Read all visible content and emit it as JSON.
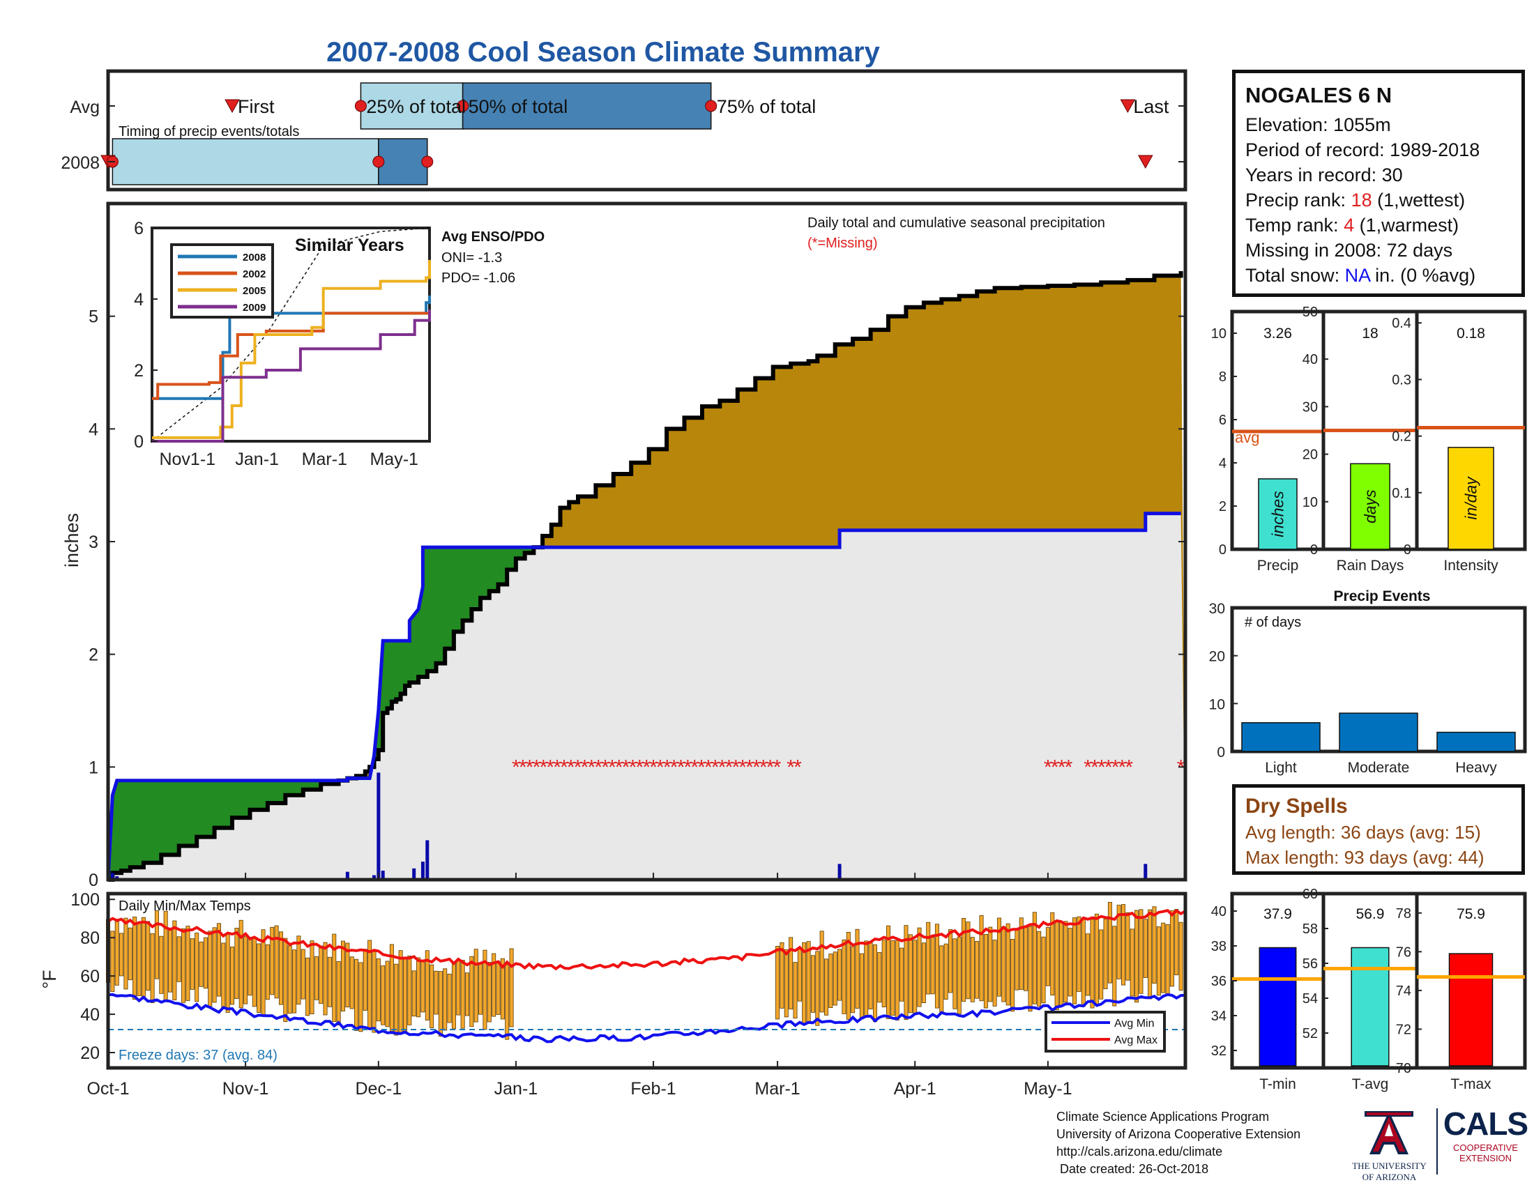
{
  "title": "2007-2008 Cool Season Climate Summary",
  "colors": {
    "title": "#1f57a3",
    "green": "#228b22",
    "gold": "#b8860b",
    "obs_fill": "#e8e8e8",
    "avg_line": "#1010e0",
    "temp_bar": "#f2a72c",
    "red": "#e02020",
    "blue": "#1010ee",
    "avg_bar_line": "#d95319"
  },
  "timing": {
    "caption": "Timing of precip events/totals",
    "rows": [
      "Avg",
      "2008"
    ],
    "avg_labels": [
      "First",
      "25% of total",
      "50% of total",
      "75% of total",
      "Last"
    ],
    "avg_first_day": 28,
    "avg_q25_day": 57,
    "avg_q50_day": 80,
    "avg_q75_day": 136,
    "avg_last_day": 230,
    "y2008_first_day": 1,
    "y2008_q25_day": 61,
    "y2008_q50_day": 61,
    "y2008_q75_day": 72,
    "y2008_last_day": 234
  },
  "station": {
    "name": "NOGALES 6 N",
    "elevation_label": "Elevation: 1055m",
    "period_label": "Period of record: 1989-2018",
    "years_label": "Years in record: 30",
    "precip_rank_prefix": "Precip rank: ",
    "precip_rank_value": "18",
    "precip_rank_suffix": " (1,wettest)",
    "temp_rank_prefix": "Temp rank: ",
    "temp_rank_value": "4",
    "temp_rank_suffix": " (1,warmest)",
    "missing_label": "Missing in 2008: 72 days",
    "snow_prefix": "Total snow: ",
    "snow_value": "NA",
    "snow_suffix": " in. (0 %avg)"
  },
  "main_chart": {
    "ylabel": "inches",
    "ylim": [
      0,
      6
    ],
    "yticks": [
      0,
      1,
      2,
      3,
      4,
      5
    ],
    "legend_line1": "Daily total and cumulative seasonal precipitation",
    "legend_line2": "(*=Missing)",
    "enso_title": "Avg ENSO/PDO",
    "oni_label": "ONI= -1.3",
    "pdo_label": "PDO= -1.06",
    "x_days": [
      0,
      31,
      61,
      92,
      123,
      151,
      182,
      212
    ],
    "x_labels": [
      "Oct-1",
      "Nov-1",
      "Dec-1",
      "Jan-1",
      "Feb-1",
      "Mar-1",
      "Apr-1",
      "May-1"
    ],
    "num_days": 243,
    "observed": [
      [
        0,
        0.0
      ],
      [
        1,
        0.03
      ],
      [
        1,
        0.06
      ],
      [
        2,
        0.06
      ],
      [
        3,
        0.08
      ],
      [
        5,
        0.11
      ],
      [
        8,
        0.15
      ],
      [
        12,
        0.22
      ],
      [
        16,
        0.3
      ],
      [
        20,
        0.38
      ],
      [
        24,
        0.46
      ],
      [
        28,
        0.55
      ],
      [
        32,
        0.62
      ],
      [
        36,
        0.68
      ],
      [
        40,
        0.75
      ],
      [
        44,
        0.8
      ],
      [
        48,
        0.85
      ],
      [
        52,
        0.88
      ],
      [
        54,
        0.9
      ],
      [
        56,
        0.92
      ],
      [
        58,
        0.96
      ],
      [
        59,
        1.0
      ],
      [
        60,
        1.07
      ],
      [
        61,
        1.15
      ],
      [
        62,
        1.2
      ],
      [
        62,
        1.48
      ],
      [
        63,
        1.52
      ],
      [
        64,
        1.58
      ],
      [
        65,
        1.6
      ],
      [
        66,
        1.65
      ],
      [
        67,
        1.72
      ],
      [
        68,
        1.75
      ],
      [
        70,
        1.8
      ],
      [
        72,
        1.85
      ],
      [
        74,
        1.92
      ],
      [
        76,
        2.05
      ],
      [
        78,
        2.2
      ],
      [
        80,
        2.3
      ],
      [
        82,
        2.4
      ],
      [
        84,
        2.5
      ],
      [
        86,
        2.56
      ],
      [
        88,
        2.62
      ],
      [
        90,
        2.75
      ],
      [
        92,
        2.85
      ],
      [
        94,
        2.9
      ],
      [
        96,
        2.95
      ],
      [
        98,
        3.05
      ],
      [
        100,
        3.15
      ],
      [
        102,
        3.3
      ],
      [
        104,
        3.35
      ],
      [
        106,
        3.4
      ],
      [
        110,
        3.5
      ],
      [
        114,
        3.6
      ],
      [
        118,
        3.7
      ],
      [
        122,
        3.82
      ],
      [
        126,
        4.0
      ],
      [
        130,
        4.1
      ],
      [
        134,
        4.2
      ],
      [
        138,
        4.25
      ],
      [
        142,
        4.35
      ],
      [
        146,
        4.45
      ],
      [
        150,
        4.55
      ],
      [
        154,
        4.58
      ],
      [
        158,
        4.6
      ],
      [
        160,
        4.65
      ],
      [
        164,
        4.75
      ],
      [
        168,
        4.8
      ],
      [
        172,
        4.88
      ],
      [
        176,
        5.0
      ],
      [
        180,
        5.08
      ],
      [
        184,
        5.12
      ],
      [
        188,
        5.15
      ],
      [
        192,
        5.18
      ],
      [
        196,
        5.22
      ],
      [
        200,
        5.25
      ],
      [
        206,
        5.26
      ],
      [
        212,
        5.27
      ],
      [
        218,
        5.28
      ],
      [
        224,
        5.3
      ],
      [
        230,
        5.32
      ],
      [
        236,
        5.36
      ],
      [
        242,
        5.4
      ]
    ],
    "avg_cum": [
      [
        0,
        0.0
      ],
      [
        1,
        0.75
      ],
      [
        2,
        0.88
      ],
      [
        54,
        0.88
      ],
      [
        54,
        0.9
      ],
      [
        59,
        0.9
      ],
      [
        60,
        1.1
      ],
      [
        61,
        1.5
      ],
      [
        62,
        2.12
      ],
      [
        68,
        2.12
      ],
      [
        68,
        2.3
      ],
      [
        70,
        2.4
      ],
      [
        71,
        2.6
      ],
      [
        71,
        2.95
      ],
      [
        165,
        2.95
      ],
      [
        165,
        3.1
      ],
      [
        234,
        3.1
      ],
      [
        234,
        3.25
      ],
      [
        242,
        3.25
      ]
    ],
    "daily_bars": [
      [
        1,
        0.06
      ],
      [
        2,
        0.03
      ],
      [
        54,
        0.07
      ],
      [
        60,
        0.04
      ],
      [
        61,
        0.95
      ],
      [
        62,
        0.08
      ],
      [
        69,
        0.1
      ],
      [
        71,
        0.16
      ],
      [
        72,
        0.35
      ],
      [
        165,
        0.14
      ],
      [
        234,
        0.14
      ]
    ],
    "missing_runs": [
      [
        92,
        151
      ],
      [
        154,
        157
      ],
      [
        212,
        218
      ],
      [
        221,
        231
      ],
      [
        242,
        243
      ]
    ]
  },
  "inset": {
    "title": "Similar Years",
    "ylim": [
      0,
      6
    ],
    "yticks": [
      0,
      2,
      4,
      6
    ],
    "x_labels": [
      "Nov1-1",
      "Jan-1",
      "Mar-1",
      "May-1"
    ],
    "x_days": [
      31,
      92,
      151,
      212
    ],
    "series": [
      {
        "name": "2008",
        "color": "#1f77b4",
        "points": [
          [
            0,
            1.2
          ],
          [
            25,
            1.2
          ],
          [
            50,
            1.2
          ],
          [
            62,
            2.5
          ],
          [
            68,
            3.5
          ],
          [
            80,
            3.6
          ],
          [
            150,
            3.6
          ],
          [
            240,
            3.9
          ],
          [
            243,
            4.1
          ]
        ]
      },
      {
        "name": "2002",
        "color": "#d95319",
        "points": [
          [
            0,
            1.2
          ],
          [
            5,
            1.6
          ],
          [
            50,
            1.65
          ],
          [
            60,
            2.4
          ],
          [
            75,
            3.0
          ],
          [
            100,
            3.1
          ],
          [
            150,
            3.6
          ],
          [
            243,
            3.7
          ]
        ]
      },
      {
        "name": "2005",
        "color": "#edb120",
        "points": [
          [
            0,
            0.1
          ],
          [
            60,
            0.4
          ],
          [
            70,
            1.0
          ],
          [
            78,
            2.2
          ],
          [
            90,
            3.0
          ],
          [
            140,
            3.2
          ],
          [
            150,
            4.3
          ],
          [
            200,
            4.5
          ],
          [
            240,
            4.6
          ],
          [
            243,
            5.1
          ]
        ]
      },
      {
        "name": "2009",
        "color": "#7e2f8e",
        "points": [
          [
            0,
            0.0
          ],
          [
            30,
            0.0
          ],
          [
            62,
            1.8
          ],
          [
            100,
            2.0
          ],
          [
            130,
            2.6
          ],
          [
            200,
            3.0
          ],
          [
            230,
            3.4
          ],
          [
            243,
            3.7
          ]
        ]
      }
    ],
    "avg_dashed": [
      [
        0,
        0.0
      ],
      [
        60,
        1.5
      ],
      [
        100,
        3.0
      ],
      [
        150,
        5.5
      ],
      [
        200,
        5.9
      ],
      [
        243,
        6.0
      ]
    ]
  },
  "temp_chart": {
    "ylabel": "°F",
    "title": "Daily Min/Max Temps",
    "ylim": [
      12,
      103
    ],
    "yticks": [
      20,
      40,
      60,
      80,
      100
    ],
    "freeze_label": "Freeze days: 37 (avg. 84)",
    "freeze_line": 32,
    "legend": [
      "Avg Min",
      "Avg Max"
    ],
    "avg_min": [
      [
        0,
        51
      ],
      [
        20,
        44
      ],
      [
        40,
        38
      ],
      [
        60,
        32
      ],
      [
        80,
        29
      ],
      [
        100,
        27
      ],
      [
        120,
        28
      ],
      [
        140,
        32
      ],
      [
        160,
        36
      ],
      [
        180,
        39
      ],
      [
        200,
        41
      ],
      [
        220,
        45
      ],
      [
        243,
        50
      ]
    ],
    "avg_max": [
      [
        0,
        89
      ],
      [
        20,
        84
      ],
      [
        40,
        78
      ],
      [
        60,
        72
      ],
      [
        80,
        67
      ],
      [
        100,
        65
      ],
      [
        120,
        66
      ],
      [
        140,
        69
      ],
      [
        160,
        75
      ],
      [
        180,
        80
      ],
      [
        200,
        84
      ],
      [
        220,
        89
      ],
      [
        243,
        94
      ]
    ],
    "temp_gap": [
      92,
      151
    ]
  },
  "precip_stats": [
    {
      "label": "Precip",
      "value_label": "3.26",
      "value": 3.26,
      "avg": 5.45,
      "ymax": 11,
      "yticks": [
        0,
        2,
        4,
        6,
        8,
        10
      ],
      "color": "#40e0d0",
      "unit": "inches",
      "avg_label": "avg"
    },
    {
      "label": "Rain Days",
      "value_label": "18",
      "value": 18,
      "avg": 25,
      "ymax": 50,
      "yticks": [
        0,
        10,
        20,
        30,
        40,
        50
      ],
      "color": "#7fff00",
      "unit": "days"
    },
    {
      "label": "Intensity",
      "value_label": "0.18",
      "value": 0.18,
      "avg": 0.215,
      "ymax": 0.42,
      "yticks": [
        0,
        0.1,
        0.2,
        0.3,
        0.4
      ],
      "color": "#ffd700",
      "unit": "in/day"
    }
  ],
  "events": {
    "title": "Precip Events",
    "inner_label": "# of days",
    "ymax": 30,
    "yticks": [
      0,
      10,
      20,
      30
    ],
    "categories": [
      "Light",
      "Moderate",
      "Heavy"
    ],
    "values": [
      6,
      8,
      4
    ],
    "color": "#0072bd"
  },
  "dry_spells": {
    "title": "Dry Spells",
    "avg_length": "Avg length: 36 days (avg: 15)",
    "max_length": "Max length: 93 days (avg: 44)",
    "color": "#8b4513"
  },
  "temp_stats": [
    {
      "label": "T-min",
      "value_label": "37.9",
      "value": 37.9,
      "avg": 36.1,
      "ylim": [
        31,
        41
      ],
      "yticks": [
        32,
        34,
        36,
        38,
        40
      ],
      "color": "#0000ff"
    },
    {
      "label": "T-avg",
      "value_label": "56.9",
      "value": 56.9,
      "avg": 55.7,
      "ylim": [
        50,
        60
      ],
      "yticks": [
        52,
        54,
        56,
        58,
        60
      ],
      "color": "#40e0d0"
    },
    {
      "label": "T-max",
      "value_label": "75.9",
      "value": 75.9,
      "avg": 74.7,
      "ylim": [
        70,
        79
      ],
      "yticks": [
        70,
        72,
        74,
        76,
        78
      ],
      "color": "#ff0000"
    }
  ],
  "footer": {
    "line1": "Climate Science Applications Program",
    "line2": "University of Arizona Cooperative Extension",
    "line3": "http://cals.arizona.edu/climate",
    "line4": " Date created: 26-Oct-2018"
  },
  "logos": {
    "ua_line1": "THE UNIVERSITY",
    "ua_line2": "OF ARIZONA",
    "cals": "CALS",
    "cals_line1": "COOPERATIVE",
    "cals_line2": "EXTENSION"
  }
}
